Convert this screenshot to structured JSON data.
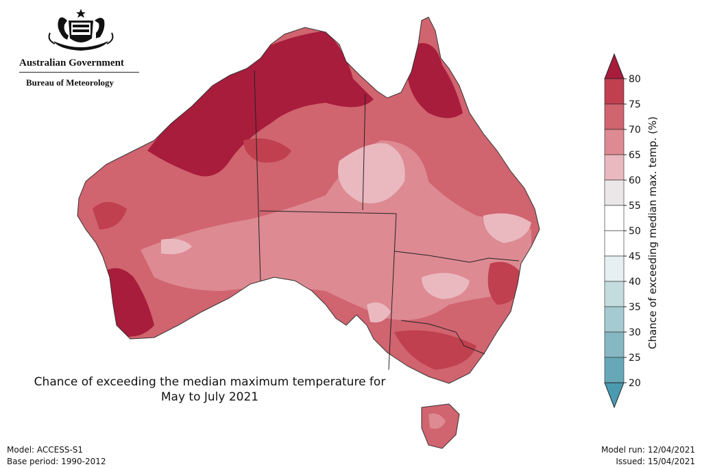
{
  "header": {
    "government": "Australian Government",
    "agency": "Bureau of Meteorology"
  },
  "map": {
    "region": "Australia",
    "caption_line1": "Chance of exceeding the median maximum temperature for",
    "caption_line2": "May to July 2021"
  },
  "colorbar": {
    "label": "Chance of exceeding median max. temp. (%)",
    "ticks": [
      "80",
      "75",
      "70",
      "65",
      "60",
      "55",
      "50",
      "45",
      "40",
      "35",
      "30",
      "25",
      "20"
    ],
    "bands": [
      "#a81c3c",
      "#c0404f",
      "#d0646f",
      "#dd8a92",
      "#e9b9bf",
      "#ebe7e8",
      "#ffffff",
      "#ffffff",
      "#e6eff1",
      "#c5dcdf",
      "#a6cad1",
      "#86b8c4",
      "#67a8b8",
      "#4a9ab0"
    ]
  },
  "footer": {
    "model": "Model: ACCESS-S1",
    "base_period": "Base period: 1990-2012",
    "model_run": "Model run: 12/04/2021",
    "issued": "Issued: 15/04/2021"
  }
}
